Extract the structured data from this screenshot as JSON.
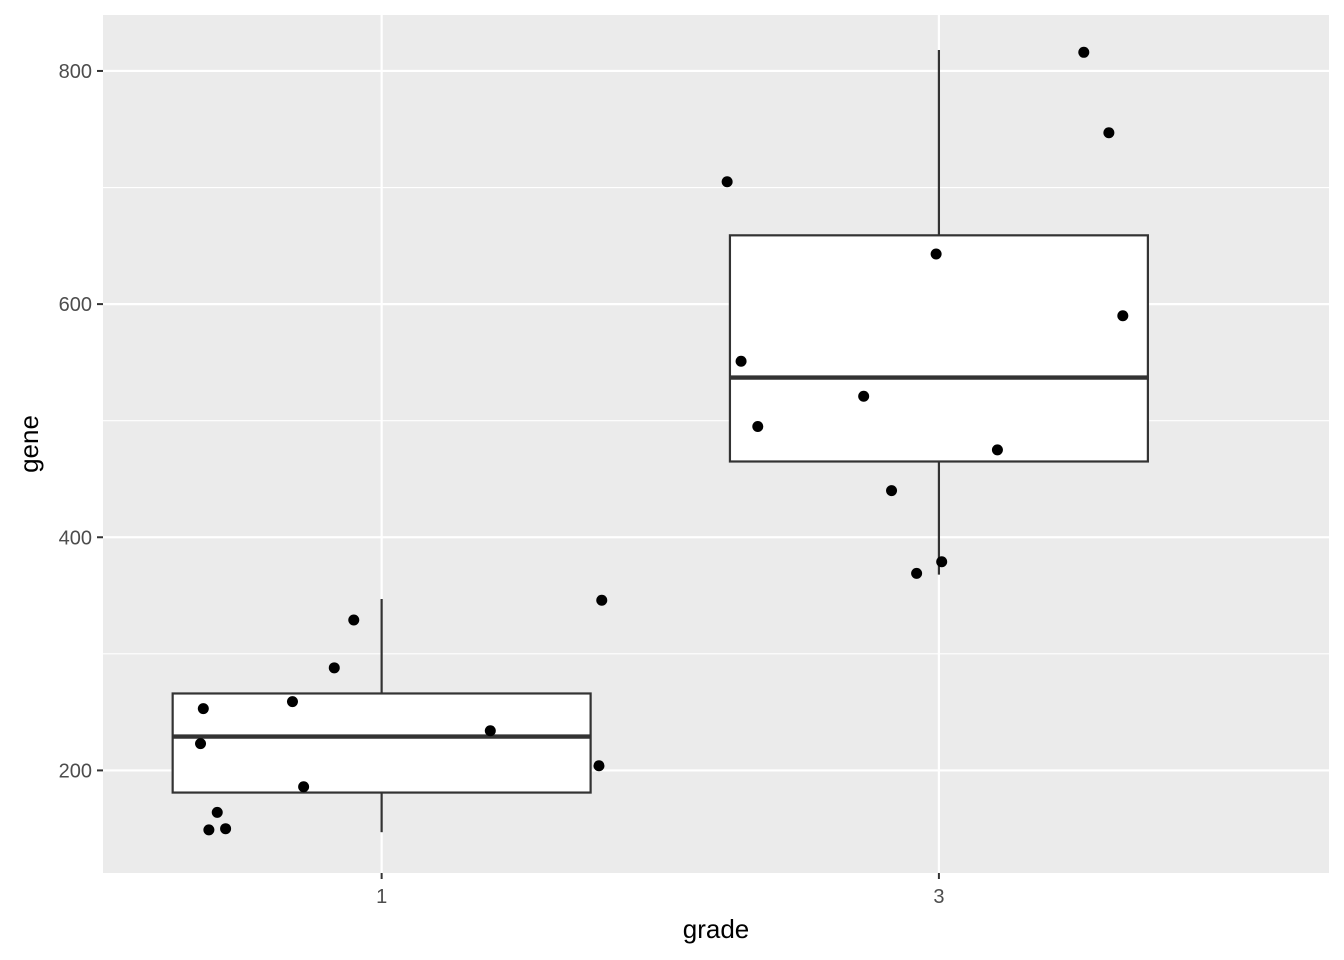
{
  "chart_data": {
    "type": "boxplot",
    "xlabel": "grade",
    "ylabel": "gene",
    "categories": [
      "1",
      "3"
    ],
    "ylim": [
      112,
      848
    ],
    "y_ticks": [
      200,
      400,
      600,
      800
    ],
    "grid": true,
    "boxes": [
      {
        "category": "1",
        "min": 147,
        "q1": 181,
        "median": 229,
        "q3": 266,
        "max": 347
      },
      {
        "category": "3",
        "min": 368,
        "q1": 465,
        "median": 537,
        "q3": 659,
        "max": 818
      }
    ],
    "points": [
      {
        "x": 0.35,
        "y": 223
      },
      {
        "x": 0.36,
        "y": 253
      },
      {
        "x": 0.38,
        "y": 149
      },
      {
        "x": 0.41,
        "y": 164
      },
      {
        "x": 0.44,
        "y": 150
      },
      {
        "x": 0.68,
        "y": 259
      },
      {
        "x": 0.72,
        "y": 186
      },
      {
        "x": 0.83,
        "y": 288
      },
      {
        "x": 0.9,
        "y": 329
      },
      {
        "x": 1.39,
        "y": 234
      },
      {
        "x": 1.78,
        "y": 204
      },
      {
        "x": 1.79,
        "y": 346
      },
      {
        "x": 2.24,
        "y": 705
      },
      {
        "x": 2.29,
        "y": 551
      },
      {
        "x": 2.35,
        "y": 495
      },
      {
        "x": 2.73,
        "y": 521
      },
      {
        "x": 2.83,
        "y": 440
      },
      {
        "x": 2.92,
        "y": 369
      },
      {
        "x": 2.99,
        "y": 643
      },
      {
        "x": 3.01,
        "y": 379
      },
      {
        "x": 3.21,
        "y": 475
      },
      {
        "x": 3.52,
        "y": 816
      },
      {
        "x": 3.61,
        "y": 747
      },
      {
        "x": 3.66,
        "y": 590
      }
    ],
    "colors": {
      "panel": "#ebebeb",
      "grid": "#ffffff",
      "box_fill": "#ffffff",
      "box_line": "#333333",
      "point": "#000000"
    }
  }
}
